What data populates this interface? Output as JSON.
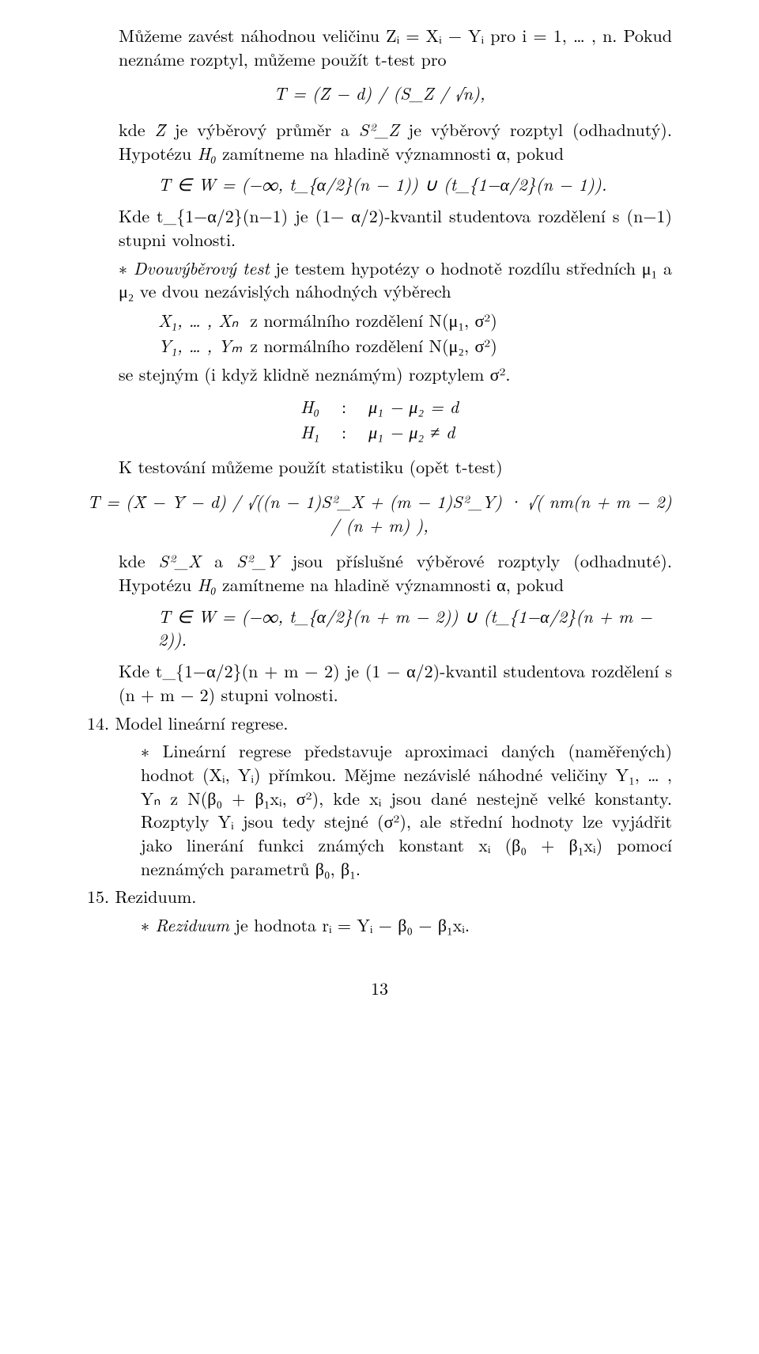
{
  "p1": "Můžeme zavést náhodnou veličinu Zᵢ = Xᵢ − Yᵢ pro i = 1, … , n. Pokud neznáme rozptyl, můžeme použít t-test pro",
  "f1": "T = (Z̄ − d) / (S_Z / √n),",
  "p2_a": "kde ",
  "p2_b": "Z̄",
  "p2_c": " je výběrový průměr a ",
  "p2_d": "S²_Z",
  "p2_e": " je výběrový rozptyl (odhadnutý). Hypotézu ",
  "p2_f": "H₀",
  "p2_g": " zamítneme na hladině významnosti α, pokud",
  "f2": "T ∈ W = (−∞, t_{α/2}(n − 1)) ∪ (t_{1−α/2}(n − 1)).",
  "p3": "Kde t_{1−α/2}(n−1) je (1− α/2)-kvantil studentova rozdělení s (n−1) stupni volnosti.",
  "p4_a": "Dvouvýběrový test",
  "p4_b": " je testem hypotézy o hodnotě rozdílu středních μ₁ a μ₂ ve dvou nezávislých náhodných výběrech",
  "tbl1_r1c1": "X₁, … , Xₙ",
  "tbl1_r1c2": "z normálního rozdělení N(μ₁, σ²)",
  "tbl1_r2c1": "Y₁, … , Yₘ",
  "tbl1_r2c2": "z normálního rozdělení N(μ₂, σ²)",
  "p5": "se stejným (i když klidně neznámým) rozptylem σ².",
  "tbl2_r1c1": "H₀",
  "tbl2_r1c2": ":",
  "tbl2_r1c3": "μ₁ − μ₂ = d",
  "tbl2_r2c1": "H₁",
  "tbl2_r2c2": ":",
  "tbl2_r2c3": "μ₁ − μ₂ ≠ d",
  "p6": "K testování můžeme použít statistiku (opět t-test)",
  "f3": "T = (X̄ − Ȳ − d) / √((n − 1)S²_X + (m − 1)S²_Y) · √( nm(n + m − 2) / (n + m) ),",
  "p7_a": "kde ",
  "p7_b": "S²_X",
  "p7_c": " a ",
  "p7_d": "S²_Y",
  "p7_e": " jsou příslušné výběrové rozptyly (odhadnuté). Hypotézu ",
  "p7_f": "H₀",
  "p7_g": " zamítneme na hladině významnosti α, pokud",
  "f4": "T ∈ W = (−∞, t_{α/2}(n + m − 2)) ∪ (t_{1−α/2}(n + m − 2)).",
  "p8": "Kde t_{1−α/2}(n + m − 2) je (1 − α/2)-kvantil studentova rozdělení s (n + m − 2) stupni volnosti.",
  "h14": "14. Model lineární regrese.",
  "p9_a": "Lineární regrese představuje aproximaci daných (naměřených) hodnot (Xᵢ, Yᵢ) přímkou. Mějme nezávislé náhodné veličiny Y₁, … , Yₙ z N(β₀ + β₁xᵢ, σ²), kde xᵢ jsou dané nestejně velké konstanty. Rozptyly Yᵢ jsou tedy stejné (σ²), ale střední hodnoty lze vyjádřit jako linerání funkci známých konstant xᵢ (β₀ + β₁xᵢ) pomocí neznámých parametrů β₀, β₁.",
  "h15": "15. Reziduum.",
  "p10_a": "Reziduum",
  "p10_b": " je hodnota rᵢ = Yᵢ − β₀ − β₁xᵢ.",
  "pagenum": "13"
}
